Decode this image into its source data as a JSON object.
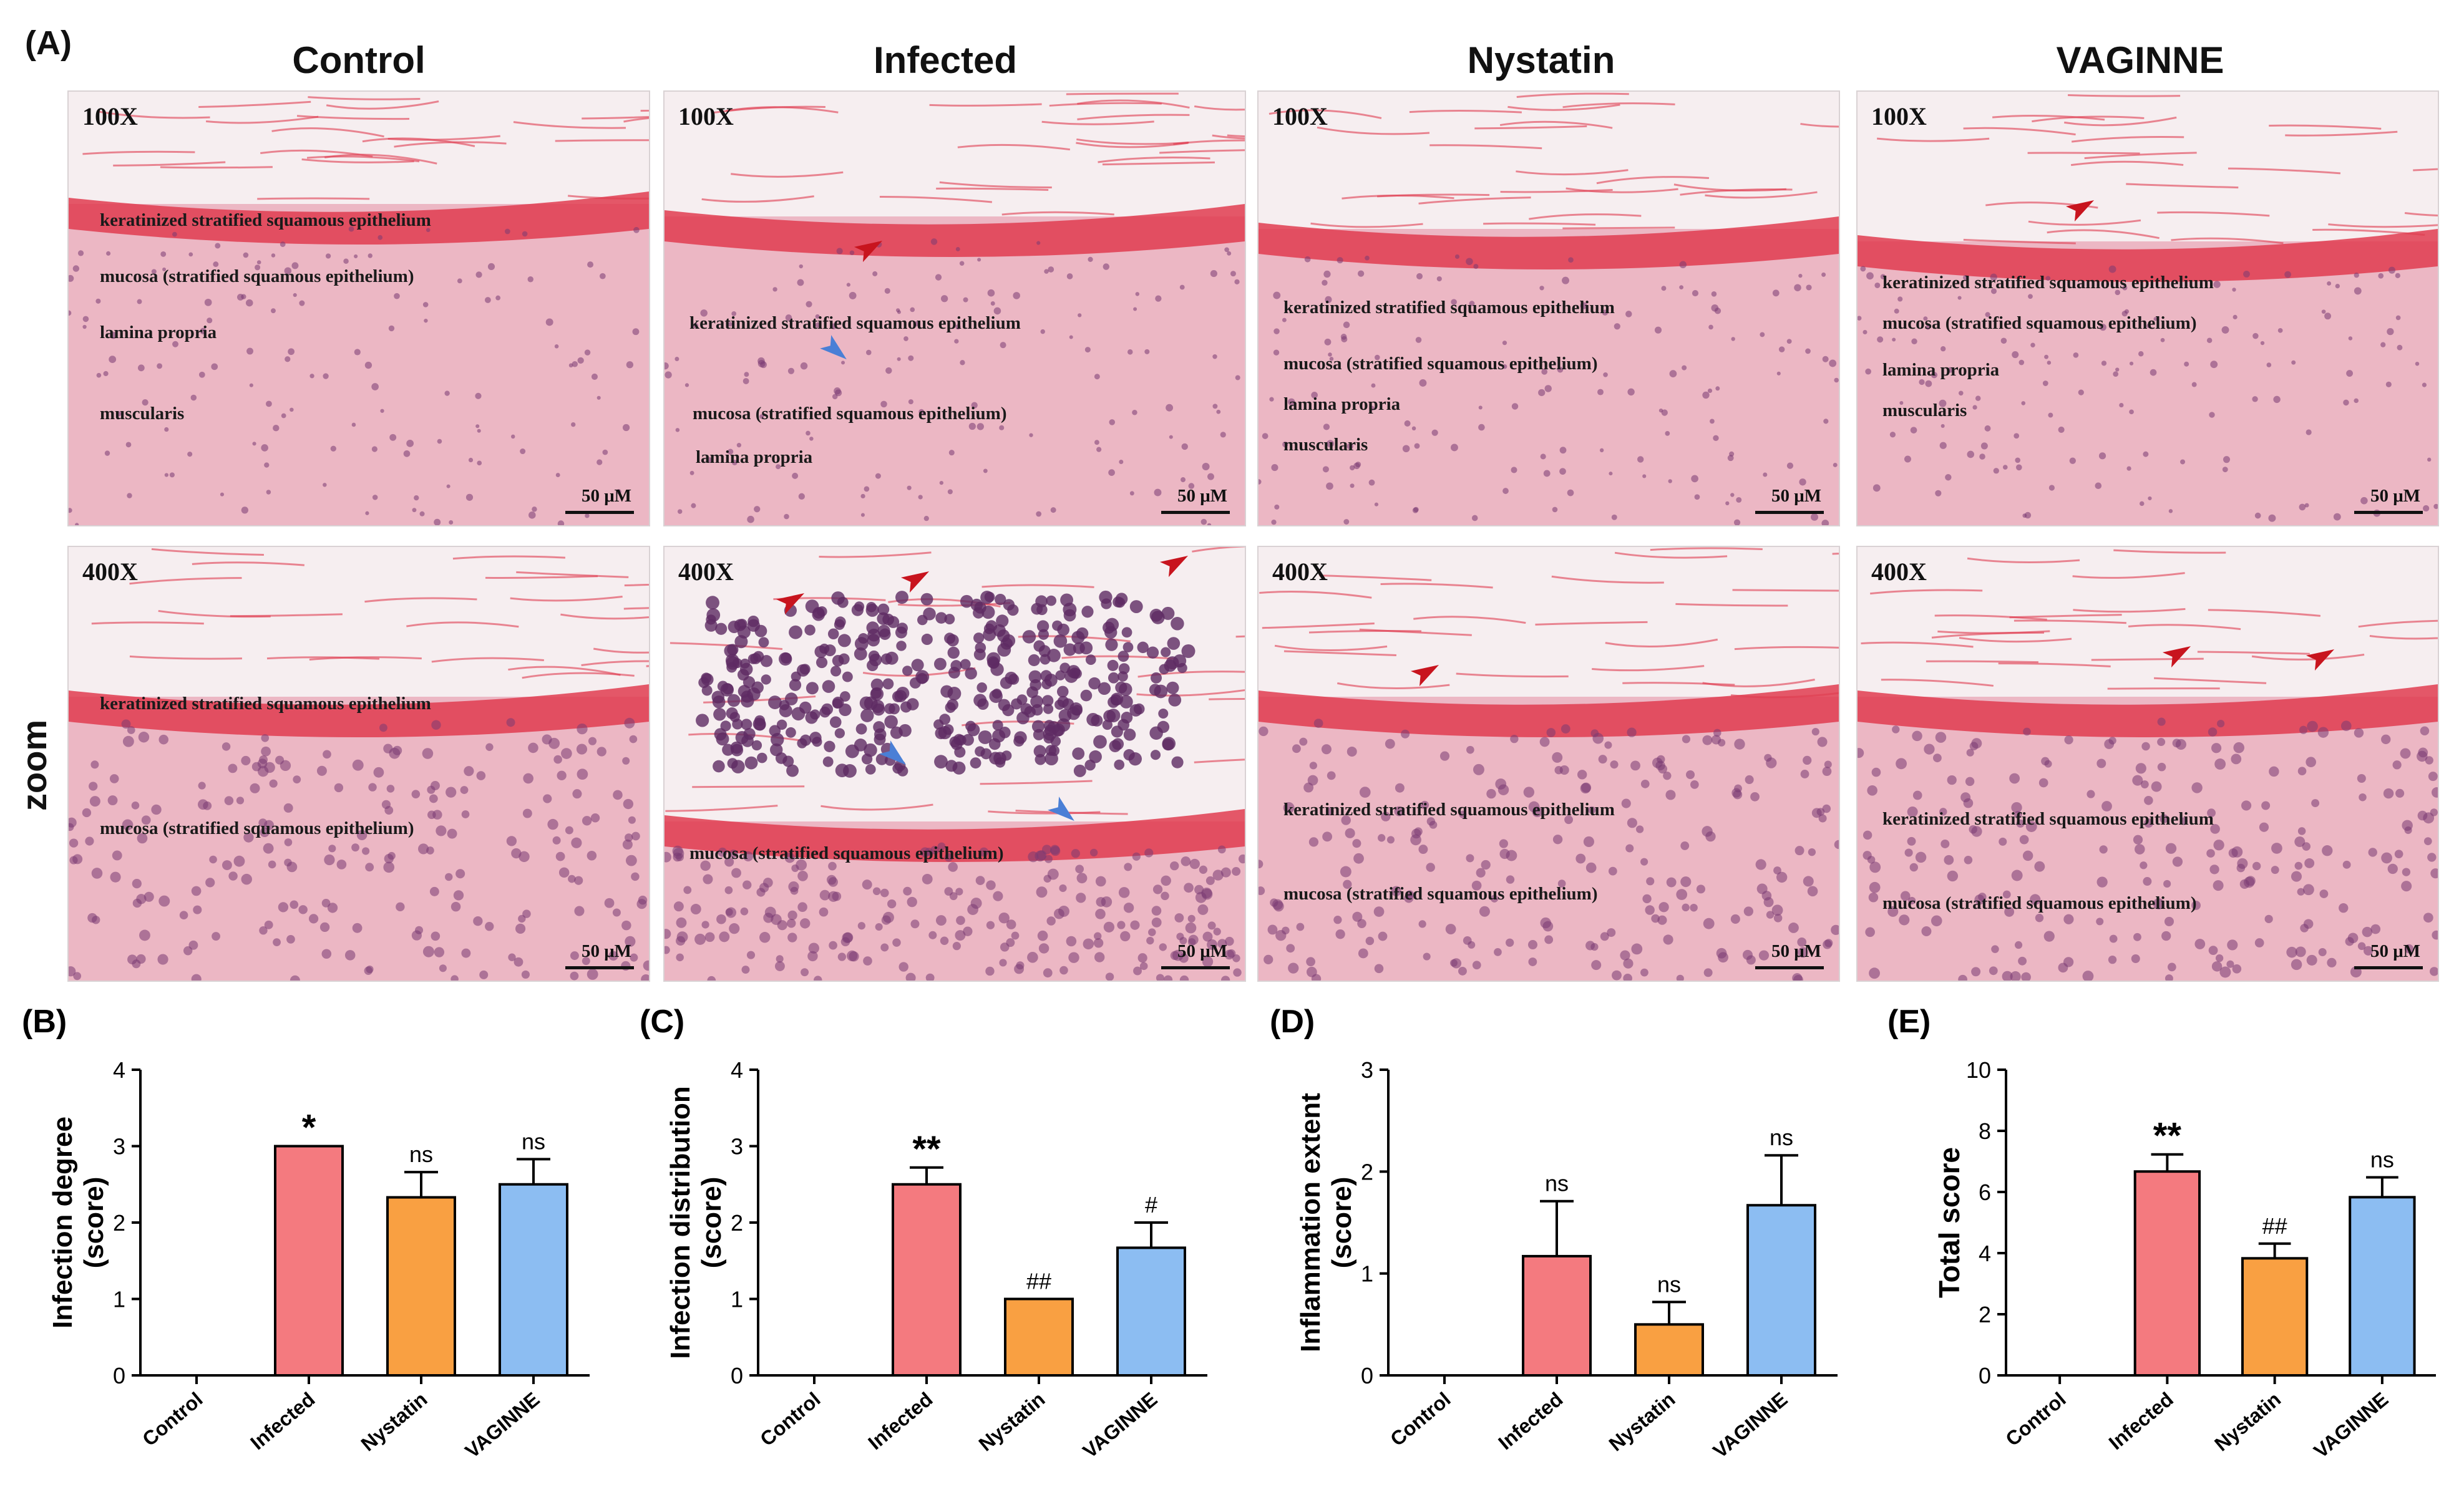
{
  "figure": {
    "panel_a_label": "(A)",
    "groups": [
      "Control",
      "Infected",
      "Nystatin",
      "VAGINNE"
    ],
    "row_magnifications": [
      "100X",
      "400X"
    ],
    "zoom_label": "zoom",
    "scale_bar_label": "50 μM",
    "tissue_labels": {
      "keratinized": "keratinized  stratified squamous epithelium",
      "mucosa": "mucosa (stratified squamous epithelium)",
      "lamina": "lamina propria",
      "muscularis": "muscularis"
    },
    "colors": {
      "control": "#f47a7f",
      "infected": "#f47a7f",
      "nystatin": "#f9a042",
      "vaginne": "#8cbdf2",
      "red_arrow": "#c8141e",
      "blue_arrow": "#4a7fd6",
      "tissue_pink": "#e48aa0",
      "keratin_red": "#e03c50"
    }
  },
  "chart_data": [
    {
      "panel": "(B)",
      "type": "bar",
      "categories": [
        "Control",
        "Infected",
        "Nystatin",
        "VAGINNE"
      ],
      "values": [
        0,
        3.0,
        2.33,
        2.5
      ],
      "errors": [
        0,
        0,
        0.33,
        0.33
      ],
      "annotations": [
        "",
        "*",
        "ns",
        "ns"
      ],
      "colors": [
        "#f47a7f",
        "#f47a7f",
        "#f9a042",
        "#8cbdf2"
      ],
      "ylabel_line1": "Infection degree",
      "ylabel_line2": "(score)",
      "ylim": [
        0,
        4
      ],
      "yticks": [
        "0",
        "1",
        "2",
        "3",
        "4"
      ]
    },
    {
      "panel": "(C)",
      "type": "bar",
      "categories": [
        "Control",
        "Infected",
        "Nystatin",
        "VAGINNE"
      ],
      "values": [
        0,
        2.5,
        1.0,
        1.67
      ],
      "errors": [
        0,
        0.22,
        0,
        0.33
      ],
      "annotations": [
        "",
        "**",
        "##",
        "#"
      ],
      "colors": [
        "#f47a7f",
        "#f47a7f",
        "#f9a042",
        "#8cbdf2"
      ],
      "ylabel_line1": "Infection distribution",
      "ylabel_line2": "(score)",
      "ylim": [
        0,
        4
      ],
      "yticks": [
        "0",
        "1",
        "2",
        "3",
        "4"
      ]
    },
    {
      "panel": "(D)",
      "type": "bar",
      "categories": [
        "Control",
        "Infected",
        "Nystatin",
        "VAGINNE"
      ],
      "values": [
        0,
        1.17,
        0.5,
        1.67
      ],
      "errors": [
        0,
        0.54,
        0.22,
        0.49
      ],
      "annotations": [
        "",
        "ns",
        "ns",
        "ns"
      ],
      "colors": [
        "#f47a7f",
        "#f47a7f",
        "#f9a042",
        "#8cbdf2"
      ],
      "ylabel_line1": "Inflammation extent",
      "ylabel_line2": "(score)",
      "ylim": [
        0,
        3
      ],
      "yticks": [
        "0",
        "1",
        "2",
        "3"
      ]
    },
    {
      "panel": "(E)",
      "type": "bar",
      "categories": [
        "Control",
        "Infected",
        "Nystatin",
        "VAGINNE"
      ],
      "values": [
        0,
        6.67,
        3.83,
        5.83
      ],
      "errors": [
        0,
        0.56,
        0.48,
        0.65
      ],
      "annotations": [
        "",
        "**",
        "##",
        "ns"
      ],
      "colors": [
        "#f47a7f",
        "#f47a7f",
        "#f9a042",
        "#8cbdf2"
      ],
      "ylabel_line1": "Total score",
      "ylabel_line2": "",
      "ylim": [
        0,
        10
      ],
      "yticks": [
        "0",
        "2",
        "4",
        "6",
        "8",
        "10"
      ]
    }
  ]
}
